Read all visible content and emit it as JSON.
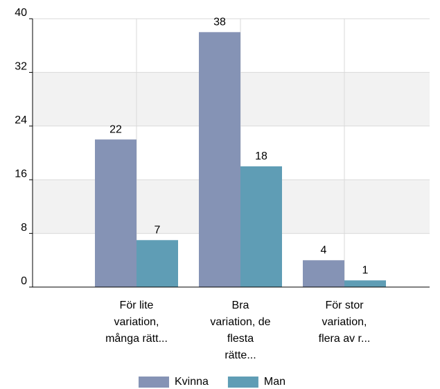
{
  "chart_data": {
    "type": "bar",
    "categories": [
      "För lite variation, många rätt...",
      "Bra variation, de flesta rätte...",
      "För stor variation, flera av r..."
    ],
    "series": [
      {
        "name": "Kvinna",
        "color": "#8593b5",
        "values": [
          22,
          38,
          4
        ]
      },
      {
        "name": "Man",
        "color": "#5f9db5",
        "values": [
          7,
          18,
          1
        ]
      }
    ],
    "ylim": [
      0,
      40
    ],
    "yticks": [
      0,
      8,
      16,
      24,
      32,
      40
    ],
    "grid": true,
    "legend": "bottom"
  }
}
